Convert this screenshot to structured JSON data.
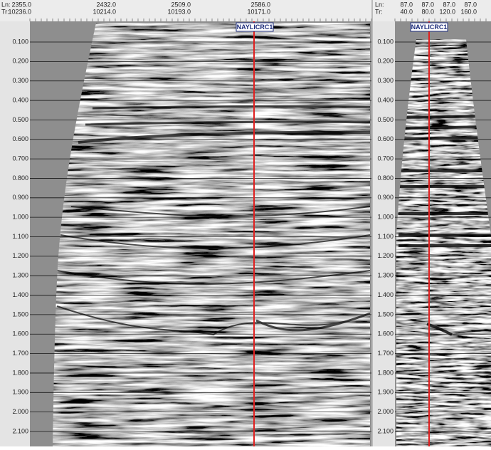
{
  "left_panel": {
    "ln_label": "Ln:",
    "tr_label": "Tr:",
    "ln": [
      "2355.0",
      "2432.0",
      "2509.0",
      "2586.0"
    ],
    "tr": [
      "10236.0",
      "10214.0",
      "10193.0",
      "10171.0"
    ],
    "well_label": "NAYLICRC1",
    "times": [
      "0.100",
      "0.200",
      "0.300",
      "0.400",
      "0.500",
      "0.600",
      "0.700",
      "0.800",
      "0.900",
      "1.000",
      "1.100",
      "1.200",
      "1.300",
      "1.400",
      "1.500",
      "1.600",
      "1.700",
      "1.800",
      "1.900",
      "2.000",
      "2.100"
    ]
  },
  "right_panel": {
    "ln_label": "Ln:",
    "tr_label": "Tr:",
    "ln": [
      "87.0",
      "87.0",
      "87.0",
      "87.0"
    ],
    "tr": [
      "40.0",
      "80.0",
      "120.0",
      "160.0"
    ],
    "well_label": "NAYLICRC1",
    "times": [
      "0.100",
      "0.200",
      "0.300",
      "0.400",
      "0.500",
      "0.600",
      "0.700",
      "0.800",
      "0.900",
      "1.000",
      "1.100",
      "1.200",
      "1.300",
      "1.400",
      "1.500",
      "1.600",
      "1.700",
      "1.800",
      "1.900",
      "2.000",
      "2.100"
    ]
  }
}
